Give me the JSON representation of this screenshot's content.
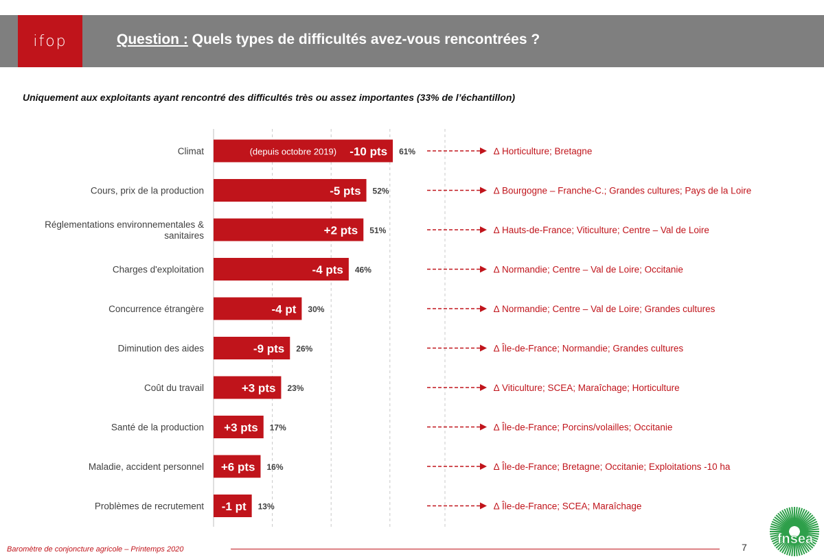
{
  "header": {
    "logo_text": "ifop",
    "question_label": "Question :",
    "question_text": " Quels types de difficultés avez-vous rencontrées ?"
  },
  "subtitle": "Uniquement aux exploitants ayant rencontré des difficultés très ou assez importantes (33% de l’échantillon)",
  "colors": {
    "bar": "#c0141b",
    "header": "#7f7f7f",
    "accent": "#c0141b"
  },
  "chart_data": {
    "type": "bar",
    "orientation": "horizontal",
    "xlim": [
      0,
      100
    ],
    "grid": true,
    "categories": [
      [
        "Climat"
      ],
      [
        "Cours, prix de la production"
      ],
      [
        "Réglementations environnementales &",
        "sanitaires"
      ],
      [
        "Charges d'exploitation"
      ],
      [
        "Concurrence étrangère"
      ],
      [
        "Diminution des aides"
      ],
      [
        "Coût du travail"
      ],
      [
        "Santé de la production"
      ],
      [
        "Maladie, accident personnel"
      ],
      [
        "Problèmes de recrutement"
      ]
    ],
    "values": [
      61,
      52,
      51,
      46,
      30,
      26,
      23,
      17,
      16,
      13
    ],
    "value_labels": [
      "61%",
      "52%",
      "51%",
      "46%",
      "30%",
      "26%",
      "23%",
      "17%",
      "16%",
      "13%"
    ],
    "changes": [
      "-10 pts",
      "-5 pts",
      "+2 pts",
      "-4 pts",
      "-4 pt",
      "-9 pts",
      "+3 pts",
      "+3 pts",
      "+6 pts",
      "-1 pt"
    ],
    "change_note": "(depuis octobre 2019)",
    "annotations": [
      "∆ Horticulture; Bretagne",
      "∆ Bourgogne – Franche-C.; Grandes cultures; Pays de la Loire",
      "∆ Hauts-de-France; Viticulture; Centre – Val de Loire",
      "∆ Normandie; Centre – Val de Loire; Occitanie",
      "∆ Normandie; Centre – Val de Loire; Grandes cultures",
      "∆ Île-de-France; Normandie; Grandes cultures",
      "∆ Viticulture; SCEA; Maraîchage; Horticulture",
      "∆ Île-de-France; Porcins/volailles; Occitanie",
      "∆ Île-de-France; Bretagne; Occitanie; Exploitations -10 ha",
      "∆ Île-de-France; SCEA; Maraîchage"
    ]
  },
  "footer": {
    "text": "Baromètre de conjoncture agricole – Printemps 2020",
    "page": "7",
    "brand": "fnsea"
  }
}
